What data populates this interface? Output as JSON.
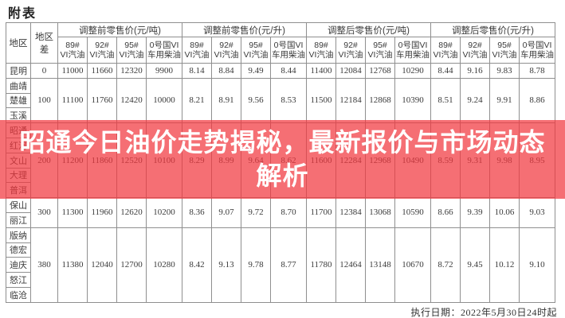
{
  "page": {
    "title": "附表",
    "footer": "执行日期：2022年5月30日24时起"
  },
  "banner": {
    "line1": "昭通今日油价走势揭秘，最新报价与市场动态",
    "line2": "解析",
    "bg_color": "#f1383e",
    "bg_opacity": 0.72,
    "text_color": "#ffffff"
  },
  "table": {
    "corner_headers": [
      "地区",
      "地区差"
    ],
    "groups": [
      {
        "title": "调整前零售价(元/吨)"
      },
      {
        "title": "调整前零售价(元/升)"
      },
      {
        "title": "调整后零售价(元/吨)"
      },
      {
        "title": "调整后零售价(元/升)"
      }
    ],
    "product_headers": [
      "89#\nVI汽油",
      "92#\nVI汽油",
      "95#\nVI汽油",
      "0号国VI\n车用柴油"
    ],
    "row_groups": [
      {
        "regions": [
          "昆明"
        ],
        "diff": "0",
        "values": [
          "11000",
          "11660",
          "12320",
          "9900",
          "8.14",
          "8.84",
          "9.49",
          "8.44",
          "11400",
          "12084",
          "12768",
          "10290",
          "8.44",
          "9.16",
          "9.83",
          "8.78"
        ]
      },
      {
        "regions": [
          "曲靖",
          "楚雄",
          "玉溪"
        ],
        "diff": "100",
        "values": [
          "11100",
          "11760",
          "12420",
          "10000",
          "8.21",
          "8.91",
          "9.56",
          "8.53",
          "11500",
          "12184",
          "12868",
          "10390",
          "8.51",
          "9.24",
          "9.91",
          "8.86"
        ]
      },
      {
        "regions": [
          "昭通",
          "红河",
          "文山",
          "大理",
          "普洱"
        ],
        "diff": "200",
        "values": [
          "11200",
          "11860",
          "12520",
          "10100",
          "8.29",
          "8.99",
          "9.64",
          "8.62",
          "11600",
          "12284",
          "12968",
          "10490",
          "8.59",
          "9.31",
          "9.98",
          "8.95"
        ]
      },
      {
        "regions": [
          "保山",
          "丽江"
        ],
        "diff": "300",
        "values": [
          "11300",
          "11960",
          "12620",
          "10200",
          "8.36",
          "9.07",
          "9.72",
          "8.70",
          "11700",
          "12384",
          "13068",
          "10590",
          "8.66",
          "9.39",
          "10.06",
          "9.03"
        ]
      },
      {
        "regions": [
          "版纳",
          "德宏",
          "迪庆",
          "怒江",
          "临沧"
        ],
        "diff": "380",
        "values": [
          "11380",
          "12040",
          "12700",
          "10280",
          "8.42",
          "9.13",
          "9.78",
          "8.77",
          "11780",
          "12464",
          "13148",
          "10670",
          "8.72",
          "9.45",
          "10.12",
          "9.10"
        ]
      }
    ]
  }
}
